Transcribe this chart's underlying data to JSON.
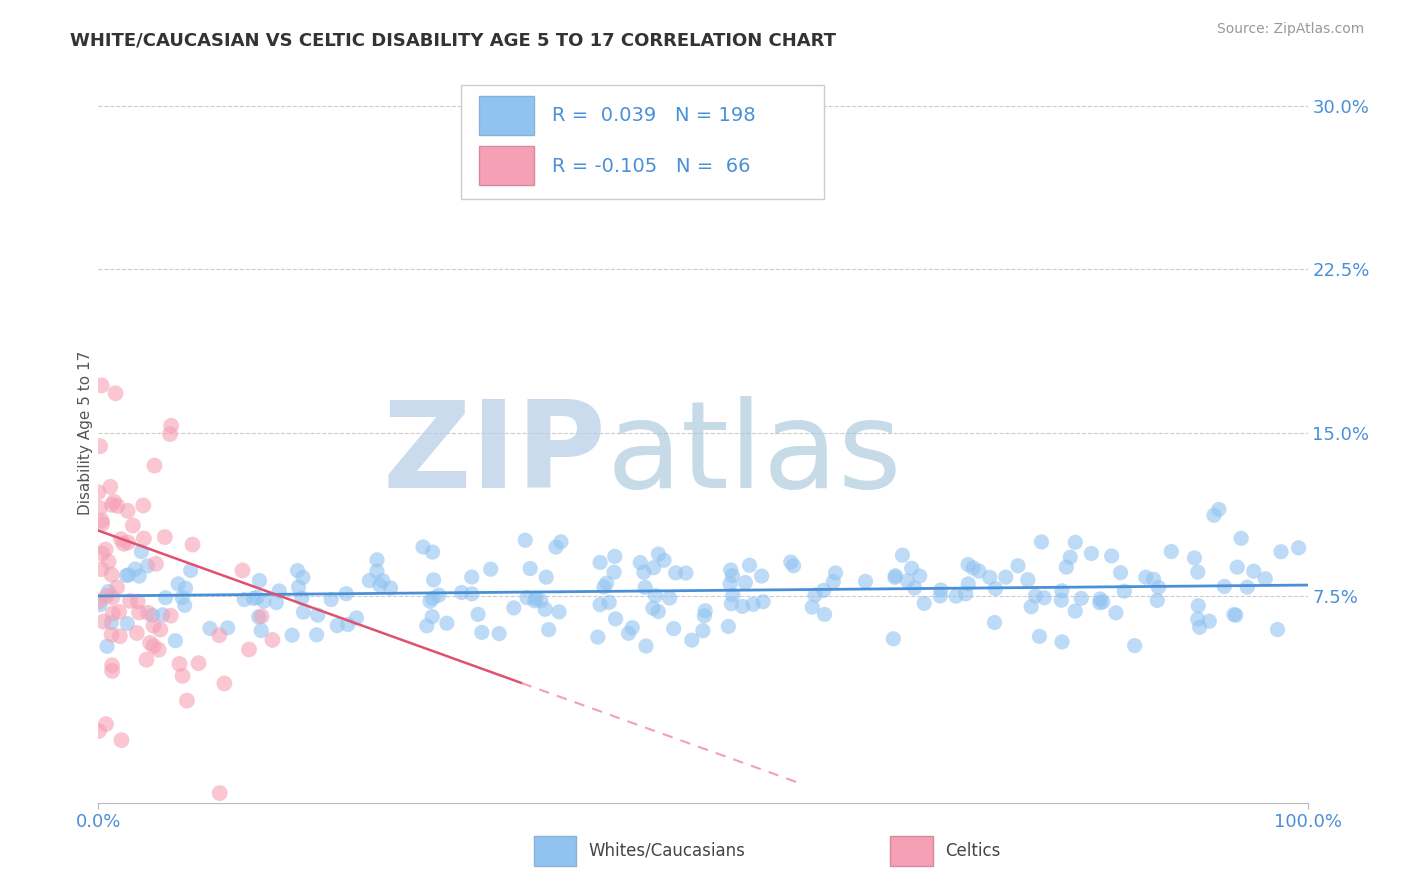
{
  "title": "WHITE/CAUCASIAN VS CELTIC DISABILITY AGE 5 TO 17 CORRELATION CHART",
  "source": "Source: ZipAtlas.com",
  "ylabel": "Disability Age 5 to 17",
  "xlim": [
    0.0,
    1.0
  ],
  "ylim": [
    -0.02,
    0.32
  ],
  "yticks": [
    0.075,
    0.15,
    0.225,
    0.3
  ],
  "ytick_labels": [
    "7.5%",
    "15.0%",
    "22.5%",
    "30.0%"
  ],
  "xtick_labels": [
    "0.0%",
    "100.0%"
  ],
  "blue_R": 0.039,
  "blue_N": 198,
  "pink_R": -0.105,
  "pink_N": 66,
  "blue_color": "#91c3f0",
  "pink_color": "#f5a0b5",
  "blue_line_color": "#4a90d9",
  "pink_line_color": "#e05070",
  "pink_dash_color": "#f0a0b8",
  "watermark_zip": "ZIP",
  "watermark_atlas": "atlas",
  "watermark_color_zip": "#c5d5e8",
  "watermark_color_atlas": "#a8c8d8",
  "background_color": "#ffffff",
  "title_fontsize": 13,
  "legend_label_color": "#4a90d9",
  "legend_text_color": "#333333",
  "tick_label_color": "#4a90d9"
}
